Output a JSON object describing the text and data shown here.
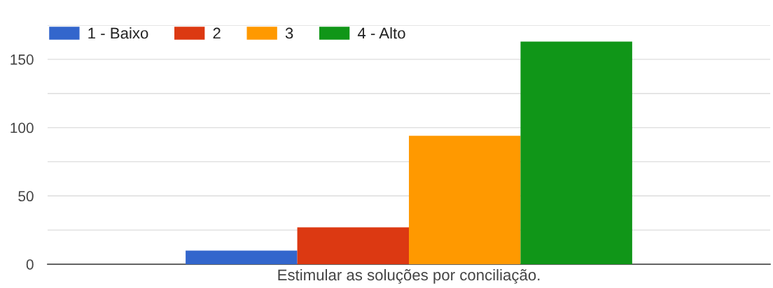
{
  "chart_data": {
    "type": "bar",
    "categories": [
      "Estimular as soluções por conciliação."
    ],
    "series": [
      {
        "name": "1 - Baixo",
        "color": "#3366cc",
        "values": [
          10
        ]
      },
      {
        "name": "2",
        "color": "#dc3912",
        "values": [
          27
        ]
      },
      {
        "name": "3",
        "color": "#ff9900",
        "values": [
          94
        ]
      },
      {
        "name": "4 - Alto",
        "color": "#109618",
        "values": [
          163
        ]
      }
    ],
    "ylim": [
      0,
      175
    ],
    "yticks": [
      0,
      {
        "value": 25,
        "label": null
      },
      50,
      {
        "value": 75,
        "label": null
      },
      100,
      {
        "value": 125,
        "label": null
      },
      150,
      {
        "value": 175,
        "label": null
      }
    ],
    "grid": "y",
    "legend": "top left"
  }
}
